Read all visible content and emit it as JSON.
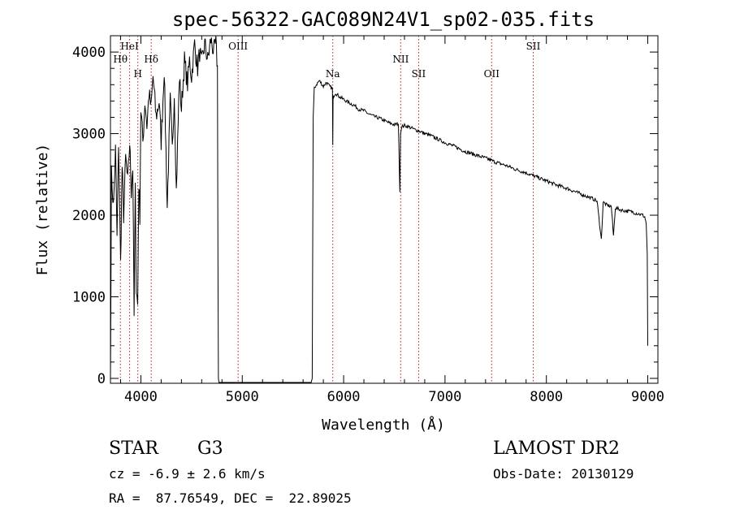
{
  "chart_data": {
    "type": "line",
    "title": "spec-56322-GAC089N24V1_sp02-035.fits",
    "xlabel": "Wavelength (Å)",
    "ylabel": "Flux (relative)",
    "xlim": [
      3700,
      9100
    ],
    "ylim": [
      -60,
      4200
    ],
    "xticks": [
      4000,
      5000,
      6000,
      7000,
      8000,
      9000
    ],
    "yticks": [
      0,
      1000,
      2000,
      3000,
      4000
    ],
    "grid": false,
    "series": [
      {
        "x": [
          3700,
          3710,
          3730,
          3750,
          3765,
          3780,
          3800,
          3815,
          3830,
          3850,
          3870,
          3890,
          3905,
          3920,
          3933,
          3945,
          3955,
          3968,
          3980,
          3990,
          4000,
          4020,
          4040,
          4060,
          4080,
          4100,
          4120,
          4150,
          4180,
          4200,
          4230,
          4260,
          4290,
          4310,
          4330,
          4350,
          4380,
          4400,
          4430,
          4460,
          4480,
          4500,
          4530,
          4560,
          4580,
          4600,
          4630,
          4660,
          4690,
          4720,
          4740,
          4755,
          4760,
          4765,
          4770,
          4790,
          5000,
          5300,
          5600,
          5680,
          5690,
          5700,
          5710,
          5730,
          5760,
          5800,
          5830,
          5860,
          5890,
          5893,
          5896,
          5920,
          5960,
          6000,
          6050,
          6100,
          6150,
          6200,
          6250,
          6300,
          6350,
          6400,
          6450,
          6500,
          6540,
          6555,
          6562,
          6570,
          6600,
          6650,
          6700,
          6750,
          6800,
          6850,
          6900,
          7000,
          7100,
          7200,
          7300,
          7400,
          7500,
          7600,
          7700,
          7800,
          7900,
          8000,
          8100,
          8200,
          8300,
          8400,
          8480,
          8500,
          8542,
          8560,
          8600,
          8640,
          8662,
          8680,
          8700,
          8750,
          8800,
          8850,
          8900,
          8950,
          8970,
          8985,
          8995,
          9000
        ],
        "y": [
          0,
          2500,
          2100,
          2800,
          1700,
          2900,
          1400,
          2600,
          2000,
          2700,
          2400,
          2900,
          2300,
          2600,
          750,
          2300,
          1100,
          900,
          2400,
          2000,
          3300,
          2900,
          3400,
          3100,
          3500,
          3300,
          3700,
          3200,
          3400,
          2900,
          3800,
          2100,
          3400,
          2800,
          3500,
          2300,
          3700,
          3300,
          3900,
          3600,
          3900,
          3700,
          4100,
          3800,
          4000,
          3850,
          4100,
          3900,
          4150,
          4000,
          4100,
          3800,
          1700,
          0,
          -50,
          -50,
          -50,
          -50,
          -50,
          -50,
          0,
          3200,
          3550,
          3600,
          3650,
          3580,
          3630,
          3580,
          3550,
          2850,
          3450,
          3500,
          3450,
          3420,
          3380,
          3350,
          3300,
          3280,
          3240,
          3210,
          3190,
          3160,
          3130,
          3110,
          3120,
          2300,
          3000,
          3080,
          3100,
          3080,
          3050,
          3030,
          3000,
          2980,
          2950,
          2890,
          2840,
          2780,
          2740,
          2700,
          2650,
          2610,
          2560,
          2520,
          2470,
          2420,
          2370,
          2330,
          2280,
          2230,
          2190,
          2170,
          1700,
          2160,
          2120,
          2110,
          1750,
          2090,
          2080,
          2060,
          2050,
          2040,
          2020,
          2000,
          1980,
          1900,
          1500,
          400
        ]
      }
    ],
    "spectral_lines": [
      {
        "label": "Hθ",
        "x": 3798,
        "row": 2
      },
      {
        "label": "HeI",
        "x": 3889,
        "row": 1
      },
      {
        "label": "H",
        "x": 3970,
        "row": 3
      },
      {
        "label": "Hδ",
        "x": 4102,
        "row": 2
      },
      {
        "label": "OIII",
        "x": 4959,
        "row": 1
      },
      {
        "label": "Na",
        "x": 5893,
        "row": 3
      },
      {
        "label": "NII",
        "x": 6563,
        "row": 2
      },
      {
        "label": "SII",
        "x": 6740,
        "row": 3
      },
      {
        "label": "OII",
        "x": 7460,
        "row": 3
      },
      {
        "label": "SII",
        "x": 7870,
        "row": 1
      }
    ]
  },
  "info": {
    "class": "STAR",
    "subclass": "G3",
    "survey": "LAMOST DR2",
    "cz": "cz = -6.9 ± 2.6 km/s",
    "obs_date": "Obs-Date: 20130129",
    "coords": "RA =  87.76549, DEC =  22.89025"
  }
}
